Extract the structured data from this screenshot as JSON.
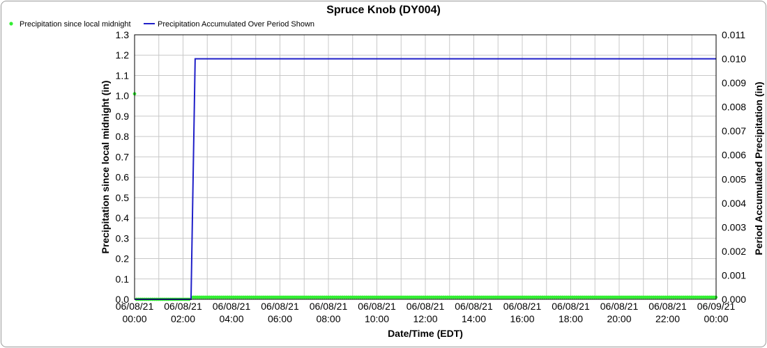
{
  "chart_data": {
    "type": "line",
    "title": "Spruce Knob (DY004)",
    "xlabel": "Date/Time (EDT)",
    "ylabel": "Precipitation since local midnight (in)",
    "y2label": "Period Accumulated Precipitation (in)",
    "x_ticks": [
      {
        "date": "06/08/21",
        "time": "00:00",
        "hour": 0
      },
      {
        "date": "06/08/21",
        "time": "02:00",
        "hour": 2
      },
      {
        "date": "06/08/21",
        "time": "04:00",
        "hour": 4
      },
      {
        "date": "06/08/21",
        "time": "06:00",
        "hour": 6
      },
      {
        "date": "06/08/21",
        "time": "08:00",
        "hour": 8
      },
      {
        "date": "06/08/21",
        "time": "10:00",
        "hour": 10
      },
      {
        "date": "06/08/21",
        "time": "12:00",
        "hour": 12
      },
      {
        "date": "06/08/21",
        "time": "14:00",
        "hour": 14
      },
      {
        "date": "06/08/21",
        "time": "16:00",
        "hour": 16
      },
      {
        "date": "06/08/21",
        "time": "18:00",
        "hour": 18
      },
      {
        "date": "06/08/21",
        "time": "20:00",
        "hour": 20
      },
      {
        "date": "06/08/21",
        "time": "22:00",
        "hour": 22
      },
      {
        "date": "06/09/21",
        "time": "00:00",
        "hour": 24
      }
    ],
    "xlim": [
      0,
      24
    ],
    "ylim": [
      0,
      1.3
    ],
    "y_ticks": [
      "0.0",
      "0.1",
      "0.2",
      "0.3",
      "0.4",
      "0.5",
      "0.6",
      "0.7",
      "0.8",
      "0.9",
      "1.0",
      "1.1",
      "1.2",
      "1.3"
    ],
    "y2lim": [
      0,
      0.011
    ],
    "y2_ticks": [
      "0.000",
      "0.001",
      "0.002",
      "0.003",
      "0.004",
      "0.005",
      "0.006",
      "0.007",
      "0.008",
      "0.009",
      "0.010",
      "0.011"
    ],
    "grid": true,
    "legend_position": "top-left",
    "series": [
      {
        "name": "Precipitation since local midnight",
        "type": "scatter",
        "axis": "left",
        "color": "#33ee33",
        "outlier": {
          "x": 0.0,
          "y": 1.01
        },
        "segments": [
          {
            "x_start": 0.083,
            "x_end": 2.25,
            "step": 0.0833,
            "y": 0.0
          },
          {
            "x_start": 2.417,
            "x_end": 24.0,
            "step": 0.0833,
            "y": 0.01
          }
        ]
      },
      {
        "name": "Precipitation Accumulated Over Period Shown",
        "type": "line",
        "axis": "right",
        "color": "#1f1fc8",
        "x": [
          0,
          2.33,
          2.5,
          24
        ],
        "y": [
          0,
          0,
          0.01,
          0.01
        ]
      }
    ]
  }
}
